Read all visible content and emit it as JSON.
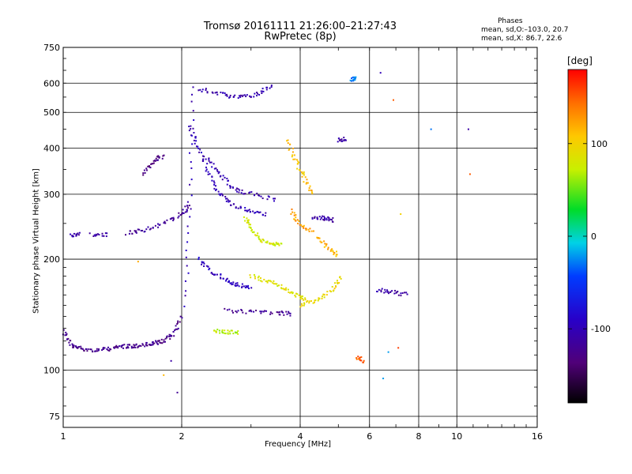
{
  "header": {
    "title_line1": "Tromsø 20161111 21:26:00–21:27:43",
    "title_line2": "RwPretec (8p)",
    "phases_title": "Phases",
    "phases_o": "mean, sd,O:–103.0, 20.7",
    "phases_x": "mean, sd,X:  86.7, 22.6"
  },
  "chart_data": {
    "type": "scatter",
    "xlabel": "Frequency [MHz]",
    "ylabel": "Stationary phase Virtual Height [km]",
    "xscale": "log",
    "yscale": "log",
    "xlim": [
      1,
      16
    ],
    "ylim": [
      70,
      750
    ],
    "x_ticks": [
      1,
      2,
      4,
      6,
      8,
      10,
      16
    ],
    "x_tick_labels": [
      "1",
      "2",
      "4",
      "6",
      "8",
      "10",
      "16"
    ],
    "y_ticks": [
      75,
      100,
      200,
      300,
      400,
      500,
      600,
      750
    ],
    "y_tick_labels": [
      "75",
      "100",
      "200",
      "300",
      "400",
      "500",
      "600",
      "750"
    ],
    "grid": true,
    "colorbar": {
      "label": "[deg]",
      "range": [
        -180,
        180
      ],
      "ticks": [
        -100,
        0,
        100
      ],
      "tick_labels": [
        "-100",
        "0",
        "100"
      ],
      "colormap": "rainbow (black-purple-blue-cyan-green-yellow-orange-red)"
    },
    "traces": [
      {
        "f": [
          1.0,
          1.05,
          1.1,
          1.2,
          1.3,
          1.4,
          1.5,
          1.6,
          1.7,
          1.8,
          1.9,
          2.0
        ],
        "h": [
          128,
          116,
          115,
          113,
          114,
          116,
          116,
          117,
          118,
          120,
          125,
          140
        ],
        "phase": -125
      },
      {
        "f": [
          1.05,
          1.1
        ],
        "h": [
          233,
          233
        ],
        "phase": -105
      },
      {
        "f": [
          1.18,
          1.3
        ],
        "h": [
          233,
          233
        ],
        "phase": -110
      },
      {
        "f": [
          1.45,
          1.6,
          1.8,
          2.0,
          2.1
        ],
        "h": [
          235,
          240,
          250,
          265,
          280
        ],
        "phase": -120
      },
      {
        "f": [
          1.6,
          1.7,
          1.8
        ],
        "h": [
          340,
          370,
          380
        ],
        "phase": -125
      },
      {
        "f": [
          2.05,
          2.1,
          2.15
        ],
        "h": [
          150,
          300,
          620
        ],
        "phase": -100
      },
      {
        "f": [
          2.1,
          2.2,
          2.35,
          2.5,
          2.7,
          3.0,
          3.3
        ],
        "h": [
          460,
          400,
          340,
          300,
          280,
          270,
          265
        ],
        "phase": -100
      },
      {
        "f": [
          2.3,
          2.5,
          2.7,
          3.0,
          3.5
        ],
        "h": [
          380,
          340,
          310,
          300,
          290
        ],
        "phase": -105
      },
      {
        "f": [
          2.2,
          2.4,
          2.6,
          2.8,
          3.0
        ],
        "h": [
          200,
          185,
          175,
          170,
          168
        ],
        "phase": -95
      },
      {
        "f": [
          2.6,
          3.0,
          3.5,
          3.8
        ],
        "h": [
          145,
          144,
          143,
          142
        ],
        "phase": -120
      },
      {
        "f": [
          2.4,
          2.6,
          2.8
        ],
        "h": [
          128,
          127,
          126
        ],
        "phase": 70
      },
      {
        "f": [
          2.2,
          2.5,
          2.8,
          3.1,
          3.4
        ],
        "h": [
          580,
          560,
          550,
          560,
          590
        ],
        "phase": -105
      },
      {
        "f": [
          2.9,
          3.0,
          3.2,
          3.4,
          3.6
        ],
        "h": [
          260,
          240,
          225,
          220,
          218
        ],
        "phase": 80
      },
      {
        "f": [
          3.0,
          3.3,
          3.6,
          3.9,
          4.2
        ],
        "h": [
          180,
          175,
          168,
          160,
          155
        ],
        "phase": 85
      },
      {
        "f": [
          3.7,
          3.9,
          4.1,
          4.3
        ],
        "h": [
          420,
          370,
          330,
          300
        ],
        "phase": 110
      },
      {
        "f": [
          3.8,
          4.0,
          4.3
        ],
        "h": [
          270,
          250,
          235
        ],
        "phase": 125
      },
      {
        "f": [
          4.4,
          4.7,
          5.0
        ],
        "h": [
          230,
          215,
          205
        ],
        "phase": 115
      },
      {
        "f": [
          4.0,
          4.4,
          4.8,
          5.1
        ],
        "h": [
          150,
          155,
          165,
          180
        ],
        "phase": 95
      },
      {
        "f": [
          4.3,
          4.6,
          4.9
        ],
        "h": [
          260,
          258,
          255
        ],
        "phase": -110
      },
      {
        "f": [
          5.0,
          5.2
        ],
        "h": [
          420,
          425
        ],
        "phase": -110
      },
      {
        "f": [
          5.4,
          5.5
        ],
        "h": [
          615,
          620
        ],
        "phase": -25
      },
      {
        "f": [
          6.3,
          6.8,
          7.5
        ],
        "h": [
          165,
          163,
          160
        ],
        "phase": -110
      },
      {
        "f": [
          5.6,
          5.8
        ],
        "h": [
          108,
          106
        ],
        "phase": 150
      }
    ],
    "points": [
      {
        "f": 1.55,
        "h": 197,
        "phase": 120
      },
      {
        "f": 1.8,
        "h": 97,
        "phase": 115
      },
      {
        "f": 1.88,
        "h": 106,
        "phase": -110
      },
      {
        "f": 1.95,
        "h": 87,
        "phase": -120
      },
      {
        "f": 6.4,
        "h": 640,
        "phase": -100
      },
      {
        "f": 6.9,
        "h": 540,
        "phase": 150
      },
      {
        "f": 7.2,
        "h": 265,
        "phase": 100
      },
      {
        "f": 8.6,
        "h": 450,
        "phase": -30
      },
      {
        "f": 10.7,
        "h": 450,
        "phase": -110
      },
      {
        "f": 10.8,
        "h": 340,
        "phase": 150
      },
      {
        "f": 6.5,
        "h": 95,
        "phase": -20
      },
      {
        "f": 7.1,
        "h": 115,
        "phase": 160
      },
      {
        "f": 6.7,
        "h": 112,
        "phase": -20
      }
    ]
  }
}
